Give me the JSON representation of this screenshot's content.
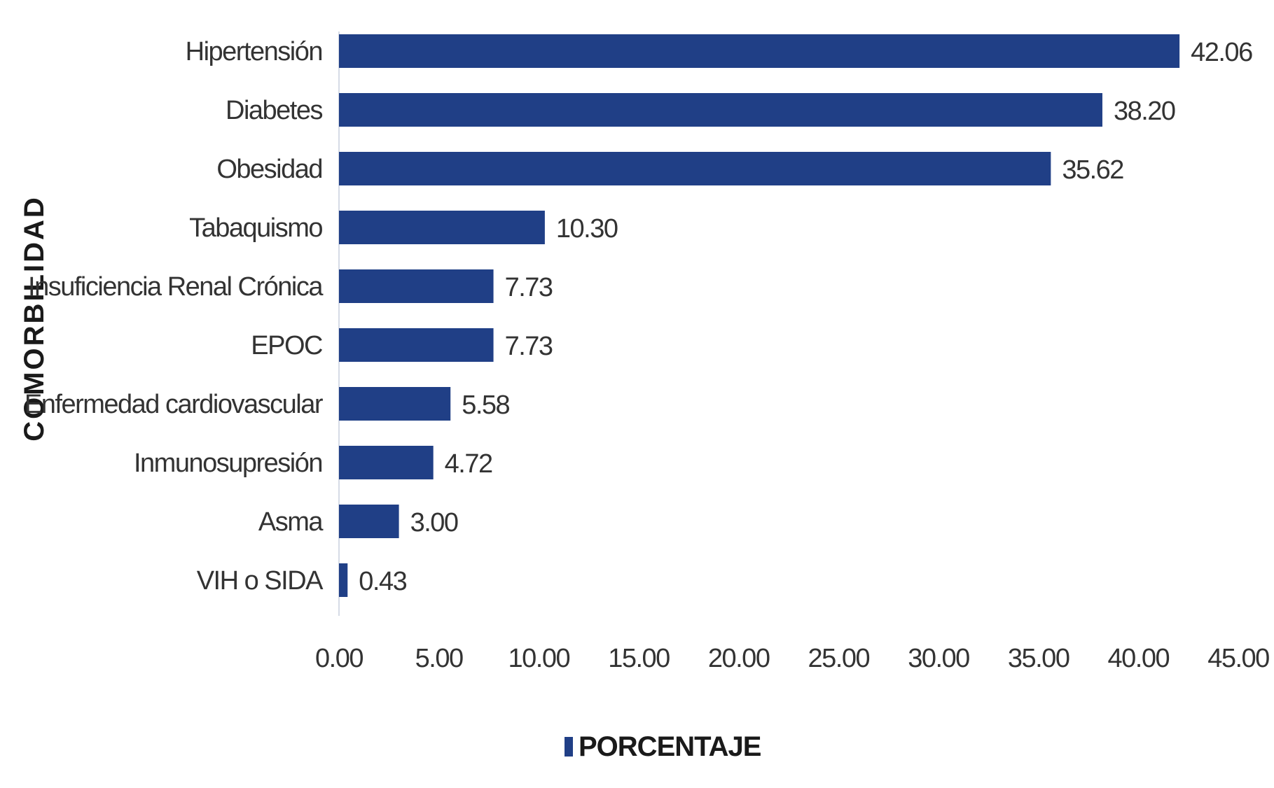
{
  "chart_data": {
    "type": "bar",
    "orientation": "horizontal",
    "ylabel": "COMORBILIDAD",
    "xlabel": "",
    "categories": [
      "Hipertensión",
      "Diabetes",
      "Obesidad",
      "Tabaquismo",
      "Insuficiencia Renal Crónica",
      "EPOC",
      "Enfermedad cardiovascular",
      "Inmunosupresión",
      "Asma",
      "VIH o SIDA"
    ],
    "series": [
      {
        "name": "PORCENTAJE",
        "values": [
          42.06,
          38.2,
          35.62,
          10.3,
          7.73,
          7.73,
          5.58,
          4.72,
          3.0,
          0.43
        ],
        "data_labels": [
          "42.06",
          "38.20",
          "35.62",
          "10.30",
          "7.73",
          "7.73",
          "5.58",
          "4.72",
          "3.00",
          "0.43"
        ]
      }
    ],
    "xlim": [
      0,
      45
    ],
    "x_ticks": [
      "0.00",
      "5.00",
      "10.00",
      "15.00",
      "20.00",
      "25.00",
      "30.00",
      "35.00",
      "40.00",
      "45.00"
    ],
    "tick_values": [
      0,
      5,
      10,
      15,
      20,
      25,
      30,
      35,
      40,
      45
    ],
    "grid": false,
    "legend_position": "bottom",
    "colors": {
      "bar": "#203f86",
      "text": "#333333",
      "axis_line": "#d6dbe6"
    }
  }
}
